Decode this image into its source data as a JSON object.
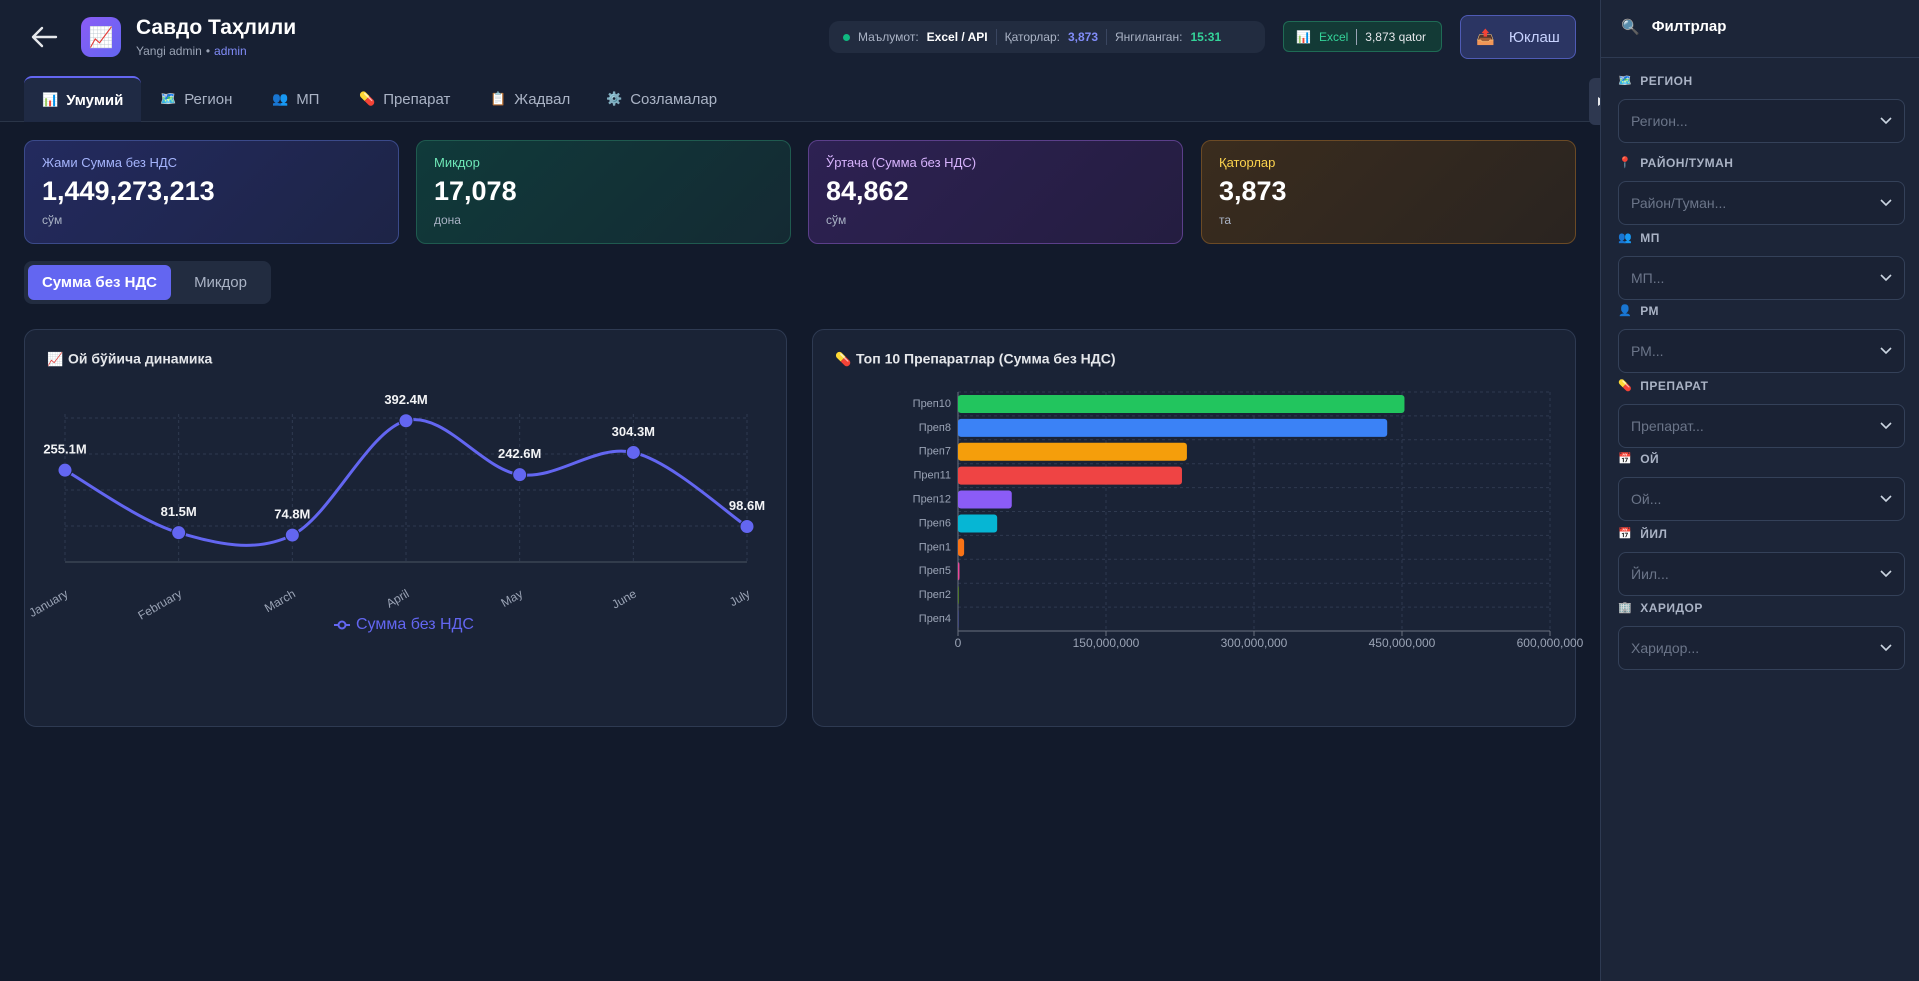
{
  "header": {
    "app_icon": "📈",
    "title": "Савдо Таҳлили",
    "user": "Yangi admin",
    "separator": "•",
    "role": "admin",
    "status": {
      "source_label": "Маълумот:",
      "source": "Excel / API",
      "rows_label": "Қаторлар:",
      "rows": "3,873",
      "updated_label": "Янгиланган:",
      "updated": "15:31"
    },
    "badge": {
      "icon": "📊",
      "label": "Excel",
      "count": "3,873 qator"
    },
    "button": {
      "icon": "📤",
      "label": "Юклаш"
    }
  },
  "tabs": [
    {
      "icon": "📊",
      "label": "Умумий"
    },
    {
      "icon": "🗺️",
      "label": "Регион"
    },
    {
      "icon": "👥",
      "label": "МП"
    },
    {
      "icon": "💊",
      "label": "Препарат"
    },
    {
      "icon": "📋",
      "label": "Жадвал"
    },
    {
      "icon": "⚙️",
      "label": "Созламалар"
    }
  ],
  "kpis": [
    {
      "label": "Жами Сумма без НДС",
      "value": "1,449,273,213",
      "unit": "сўм"
    },
    {
      "label": "Микдор",
      "value": "17,078",
      "unit": "дона"
    },
    {
      "label": "Ўртача (Сумма без НДС)",
      "value": "84,862",
      "unit": "сўм"
    },
    {
      "label": "Қаторлар",
      "value": "3,873",
      "unit": "та"
    }
  ],
  "toggle": [
    "Сумма без НДС",
    "Микдор"
  ],
  "chart_data": [
    {
      "type": "line",
      "icon": "📈",
      "title": "Ой бўйича динамика",
      "categories": [
        "January",
        "February",
        "March",
        "April",
        "May",
        "June",
        "July"
      ],
      "series": [
        {
          "name": "Сумма без НДС",
          "color": "#6366f1",
          "values": [
            255100000,
            81500000,
            74800000,
            392400000,
            242600000,
            304300000,
            98600000
          ],
          "value_labels": [
            "255.1M",
            "81.5M",
            "74.8M",
            "392.4M",
            "242.6M",
            "304.3M",
            "98.6M"
          ]
        }
      ],
      "ylim": [
        0,
        400000000
      ],
      "yticks": [
        0,
        100000000,
        200000000,
        300000000,
        400000000
      ],
      "grid": true,
      "legend": "bottom"
    },
    {
      "type": "bar",
      "orientation": "horizontal",
      "icon": "💊",
      "title": "Топ 10 Препаратлар (Сумма без НДС)",
      "categories": [
        "Преп10",
        "Преп8",
        "Преп7",
        "Преп11",
        "Преп12",
        "Преп6",
        "Преп1",
        "Преп5",
        "Преп2",
        "Преп4"
      ],
      "values": [
        452500000,
        435000000,
        232000000,
        227000000,
        54500000,
        39700000,
        6200000,
        1500000,
        500000,
        300000
      ],
      "colors": [
        "#22c55e",
        "#3b82f6",
        "#f59e0b",
        "#ef4444",
        "#8b5cf6",
        "#06b6d4",
        "#f97316",
        "#ec4899",
        "#84cc16",
        "#6366f1"
      ],
      "xlim": [
        0,
        600000000
      ],
      "xticks": [
        0,
        {
          "value": 150000000,
          "label": "150,000,000"
        },
        {
          "value": 300000000,
          "label": "300,000,000"
        },
        {
          "value": 450000000,
          "label": "450,000,000"
        },
        {
          "value": 600000000,
          "label": "600,000,000"
        }
      ],
      "grid": true
    }
  ],
  "filters": {
    "icon": "🔍",
    "title": "Филтрлар",
    "groups": [
      {
        "icon": "🗺️",
        "label": "РЕГИОН",
        "placeholder": "Регион..."
      },
      {
        "icon": "📍",
        "label": "РАЙОН/ТУМАН",
        "placeholder": "Район/Туман..."
      },
      {
        "icon": "👥",
        "label": "МП",
        "placeholder": "МП..."
      },
      {
        "icon": "👤",
        "label": "РМ",
        "placeholder": "РМ..."
      },
      {
        "icon": "💊",
        "label": "ПРЕПАРАТ",
        "placeholder": "Препарат..."
      },
      {
        "icon": "📅",
        "label": "ОЙ",
        "placeholder": "Ой..."
      },
      {
        "icon": "📅",
        "label": "ЙИЛ",
        "placeholder": "Йил..."
      },
      {
        "icon": "🏢",
        "label": "ХАРИДОР",
        "placeholder": "Харидор..."
      }
    ]
  }
}
